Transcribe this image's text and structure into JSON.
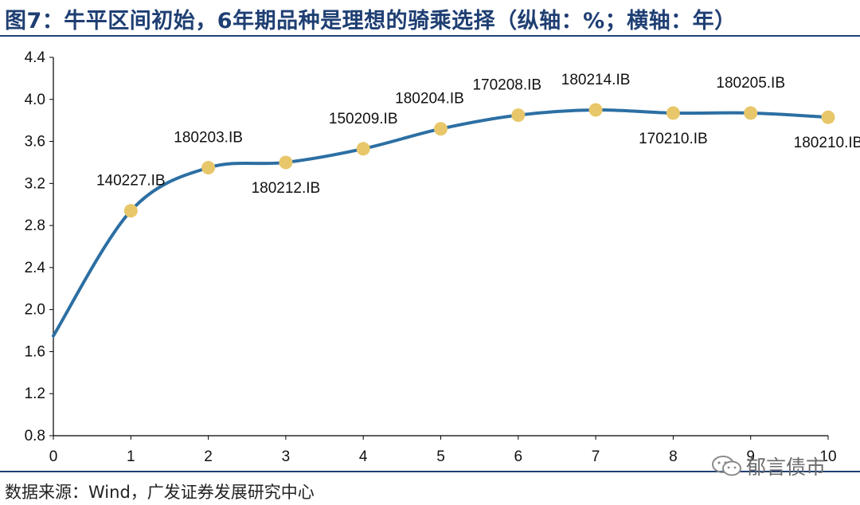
{
  "header": {
    "title": "图7：牛平区间初始，6年期品种是理想的骑乘选择（纵轴：%；横轴：年）"
  },
  "footer": {
    "source": "数据来源：Wind，广发证券发展研究中心"
  },
  "watermark": {
    "text": "郁言债市"
  },
  "chart_data": {
    "type": "line",
    "title": "牛平区间初始，6年期品种是理想的骑乘选择",
    "xlabel": "年",
    "ylabel": "%",
    "xlim": [
      0,
      10
    ],
    "ylim": [
      0.8,
      4.4
    ],
    "xticks": [
      "0",
      "1",
      "2",
      "3",
      "4",
      "5",
      "6",
      "7",
      "8",
      "9",
      "10"
    ],
    "yticks": [
      "0.8",
      "1.2",
      "1.6",
      "2.0",
      "2.4",
      "2.8",
      "3.2",
      "3.6",
      "4.0",
      "4.4"
    ],
    "grid": false,
    "line_color": "#2c6fa3",
    "marker_color": "#e8c76a",
    "curve": [
      {
        "x": 0,
        "y": 1.75
      },
      {
        "x": 1,
        "y": 2.94
      },
      {
        "x": 2,
        "y": 3.35
      },
      {
        "x": 3,
        "y": 3.4
      },
      {
        "x": 4,
        "y": 3.53
      },
      {
        "x": 5,
        "y": 3.72
      },
      {
        "x": 6,
        "y": 3.85
      },
      {
        "x": 7,
        "y": 3.9
      },
      {
        "x": 8,
        "y": 3.87
      },
      {
        "x": 9,
        "y": 3.87
      },
      {
        "x": 10,
        "y": 3.83
      }
    ],
    "points": [
      {
        "x": 1,
        "y": 2.94,
        "label": "140227.IB",
        "pos": "above"
      },
      {
        "x": 2,
        "y": 3.35,
        "label": "180203.IB",
        "pos": "above"
      },
      {
        "x": 3,
        "y": 3.4,
        "label": "180212.IB",
        "pos": "below"
      },
      {
        "x": 4,
        "y": 3.53,
        "label": "150209.IB",
        "pos": "above"
      },
      {
        "x": 5,
        "y": 3.72,
        "label": "180204.IB",
        "pos": "above-left"
      },
      {
        "x": 6,
        "y": 3.85,
        "label": "170208.IB",
        "pos": "above-left"
      },
      {
        "x": 7,
        "y": 3.9,
        "label": "180214.IB",
        "pos": "above"
      },
      {
        "x": 8,
        "y": 3.87,
        "label": "170210.IB",
        "pos": "below"
      },
      {
        "x": 9,
        "y": 3.87,
        "label": "180205.IB",
        "pos": "above"
      },
      {
        "x": 10,
        "y": 3.83,
        "label": "180210.IB",
        "pos": "below"
      }
    ]
  }
}
